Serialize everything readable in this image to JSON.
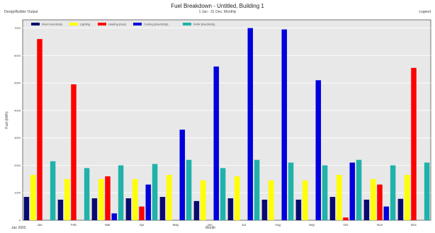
{
  "header": {
    "title": "Fuel Breakdown - Untitled, Building 1",
    "subtitle": "1 Jan - 31 Dec, Monthly",
    "left_caption": "DesignBuilder Output",
    "right_caption": "Legend"
  },
  "footer": {
    "start_label": "Jan 2002",
    "x_caption": "Month"
  },
  "colors": {
    "plot_background": "#e8e8e8",
    "gridline": "#ffffff",
    "series": [
      "#0a0a6e",
      "#ffff00",
      "#ff0000",
      "#0000dd",
      "#20b2aa"
    ]
  },
  "chart_data": {
    "type": "bar",
    "ylabel": "Fuel (kWh)",
    "ylim": [
      0,
      7300
    ],
    "yticks": [
      0,
      1000,
      2000,
      3000,
      4000,
      5000,
      6000,
      7000
    ],
    "ytick_labels": [
      "0",
      "1000",
      "2000",
      "3000",
      "4000",
      "5000",
      "6000",
      "7000"
    ],
    "categories": [
      "Jan",
      "Feb",
      "Mar",
      "Apr",
      "May",
      "Jun",
      "Jul",
      "Aug",
      "Sep",
      "Oct",
      "Nov",
      "Dec"
    ],
    "grid": true,
    "legend_position": "top",
    "series": [
      {
        "name": "Room Electricity",
        "values": [
          850,
          750,
          800,
          800,
          850,
          700,
          800,
          750,
          750,
          850,
          750,
          780
        ]
      },
      {
        "name": "Lighting",
        "values": [
          1650,
          1500,
          1500,
          1500,
          1650,
          1450,
          1600,
          1450,
          1450,
          1650,
          1500,
          1650
        ]
      },
      {
        "name": "Heating (Gas)",
        "values": [
          6600,
          4950,
          1600,
          500,
          0,
          0,
          0,
          0,
          0,
          100,
          1300,
          5550
        ]
      },
      {
        "name": "Cooling (Electricity)",
        "values": [
          0,
          0,
          250,
          1300,
          3300,
          5600,
          7000,
          6950,
          5100,
          2100,
          500,
          0
        ]
      },
      {
        "name": "DHW (Electricity)",
        "values": [
          2150,
          1900,
          2000,
          2050,
          2200,
          1900,
          2200,
          2100,
          2000,
          2200,
          2000,
          2100
        ]
      }
    ]
  }
}
